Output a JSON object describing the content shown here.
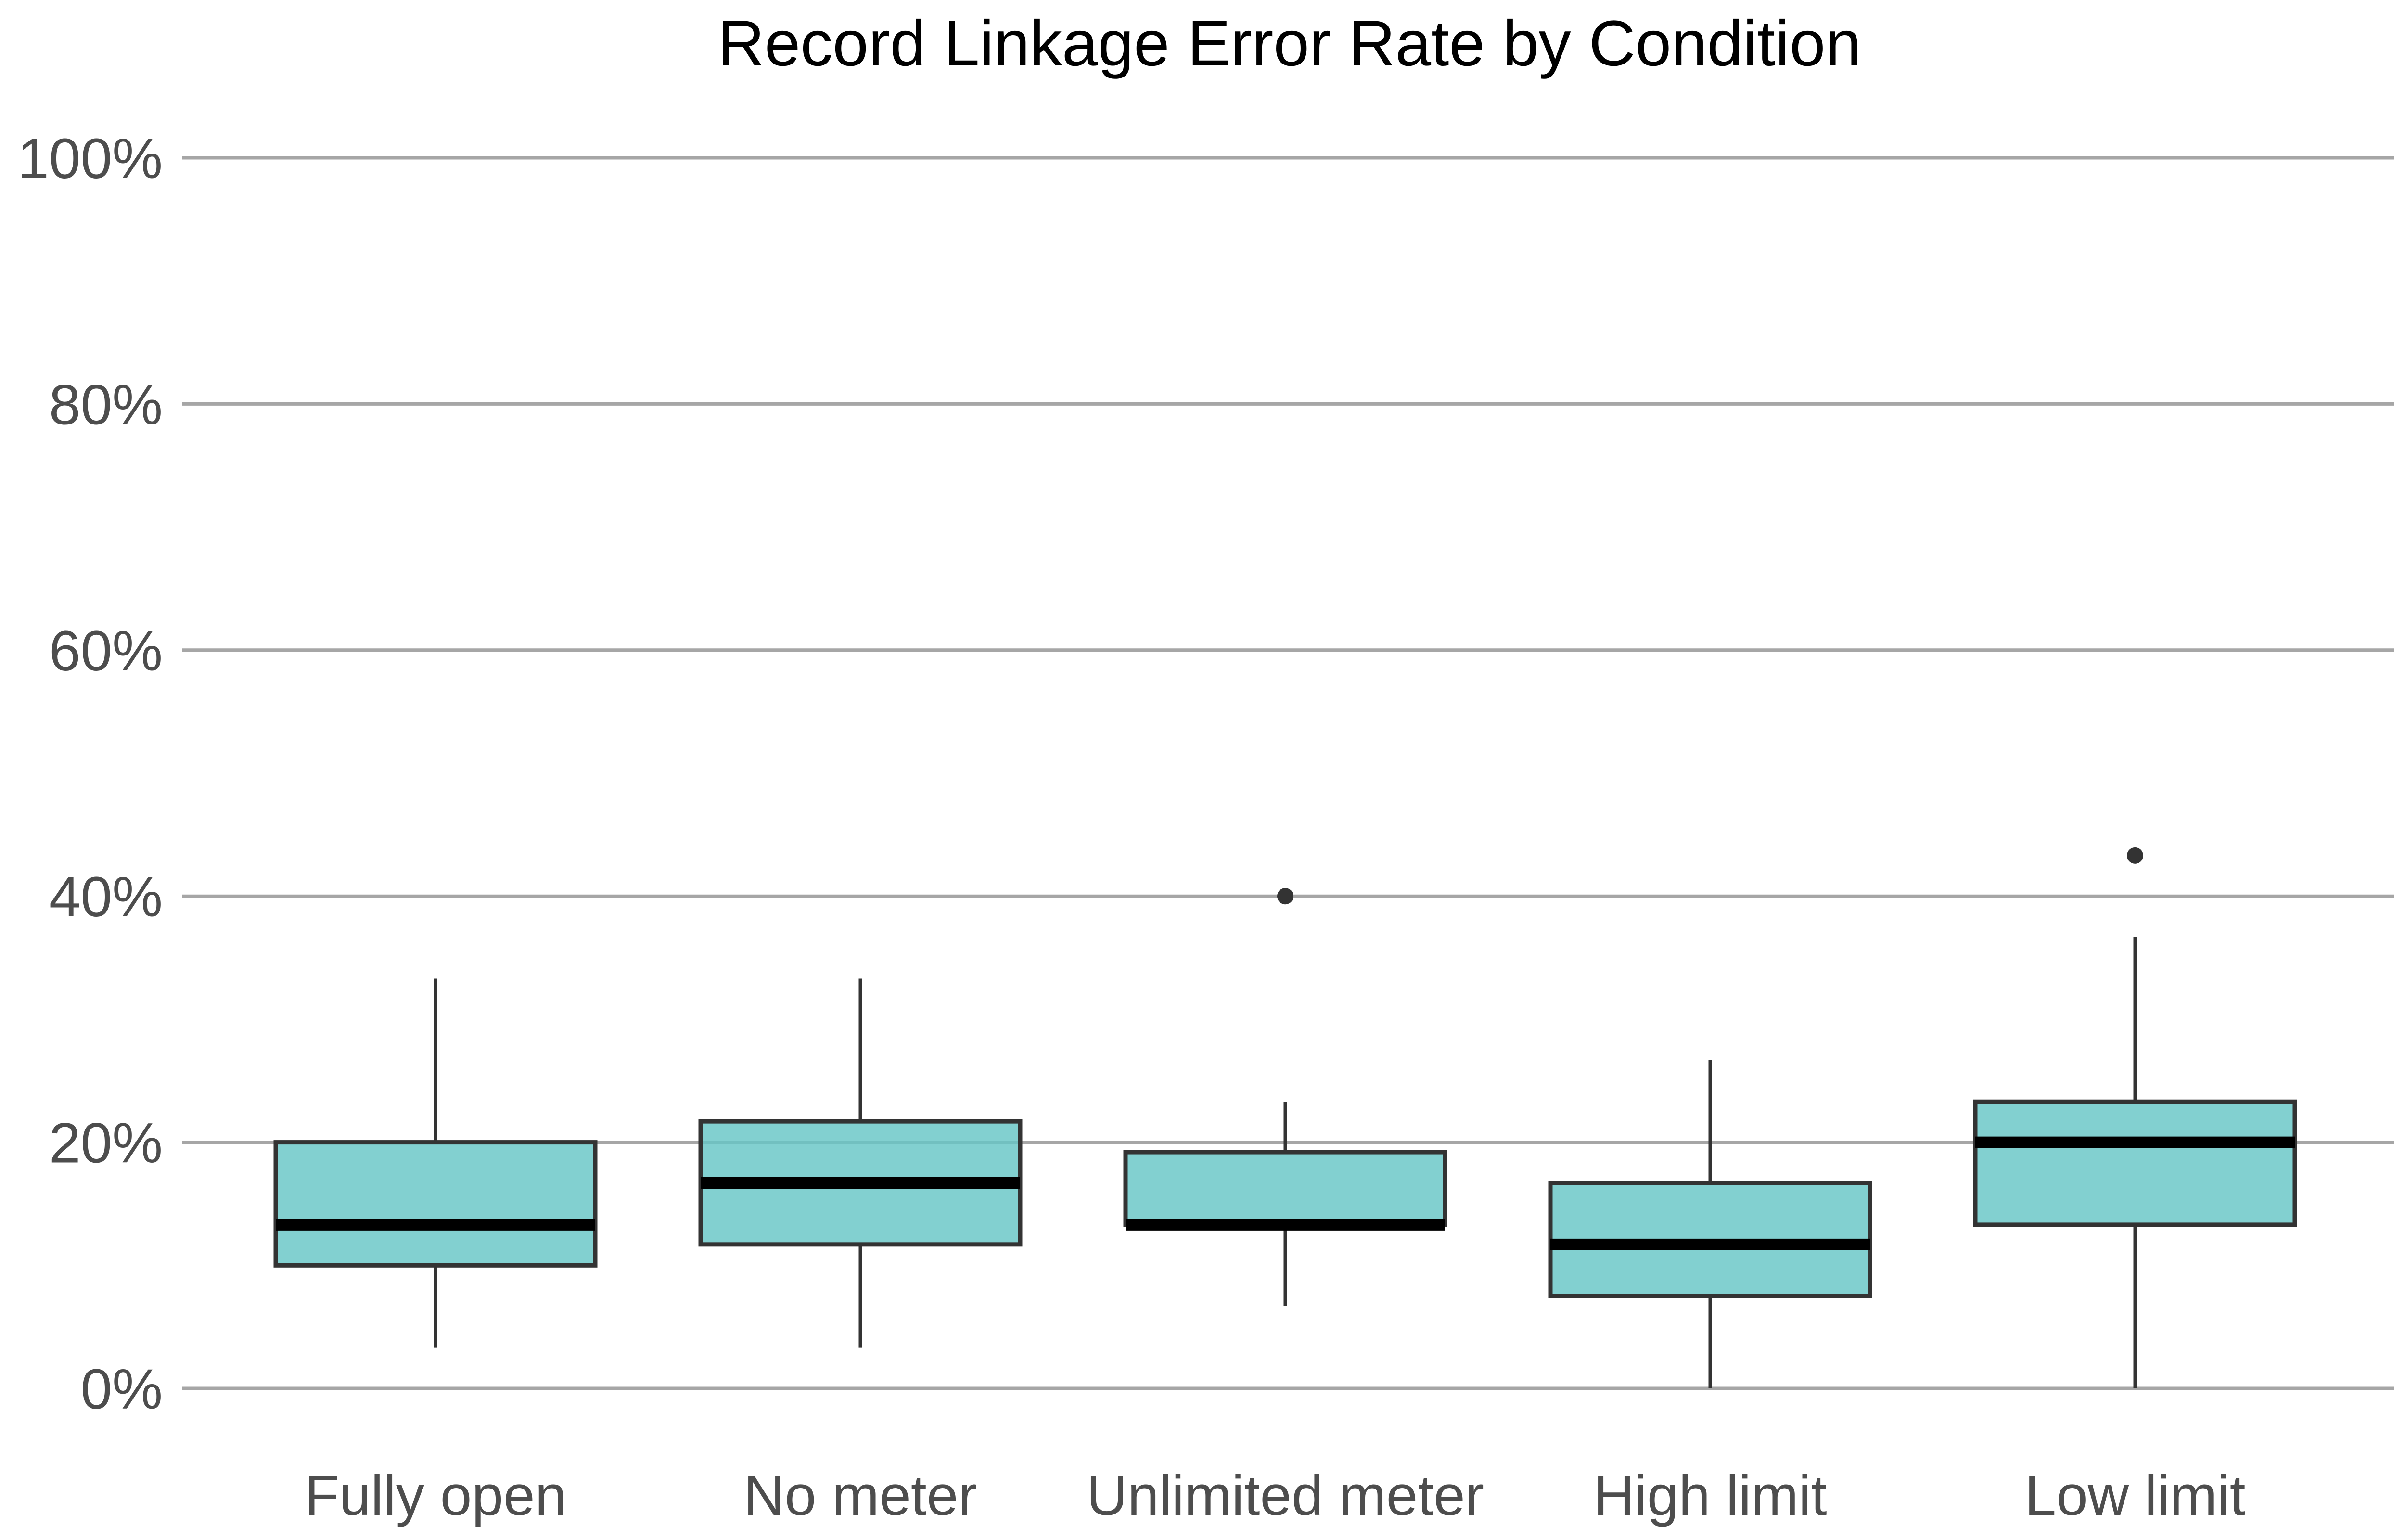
{
  "chart_data": {
    "type": "boxplot",
    "title": "Record Linkage Error Rate by Condition",
    "xlabel": "",
    "ylabel": "",
    "ylim": [
      0,
      1
    ],
    "yticks": [
      0,
      0.2,
      0.4,
      0.6,
      0.8,
      1.0
    ],
    "ytick_labels": [
      "0%",
      "20%",
      "40%",
      "60%",
      "80%",
      "100%"
    ],
    "grid": "horizontal major only",
    "legend": "none",
    "box_fill": "#66c6c6",
    "box_outline": "#333333",
    "median_color": "#000000",
    "gridline_color": "#a6a6a6",
    "categories": [
      "Fully open",
      "No meter",
      "Unlimited meter",
      "High limit",
      "Low limit"
    ],
    "boxes": [
      {
        "label": "Fully open",
        "whisker_low": 0.033,
        "q1": 0.1,
        "median": 0.133,
        "q3": 0.2,
        "whisker_high": 0.333,
        "outliers": []
      },
      {
        "label": "No meter",
        "whisker_low": 0.033,
        "q1": 0.117,
        "median": 0.167,
        "q3": 0.217,
        "whisker_high": 0.333,
        "outliers": []
      },
      {
        "label": "Unlimited meter",
        "whisker_low": 0.067,
        "q1": 0.133,
        "median": 0.133,
        "q3": 0.192,
        "whisker_high": 0.233,
        "outliers": [
          0.4
        ]
      },
      {
        "label": "High limit",
        "whisker_low": 0.0,
        "q1": 0.075,
        "median": 0.117,
        "q3": 0.167,
        "whisker_high": 0.267,
        "outliers": []
      },
      {
        "label": "Low limit",
        "whisker_low": 0.0,
        "q1": 0.133,
        "median": 0.2,
        "q3": 0.233,
        "whisker_high": 0.367,
        "outliers": [
          0.433
        ]
      }
    ]
  }
}
